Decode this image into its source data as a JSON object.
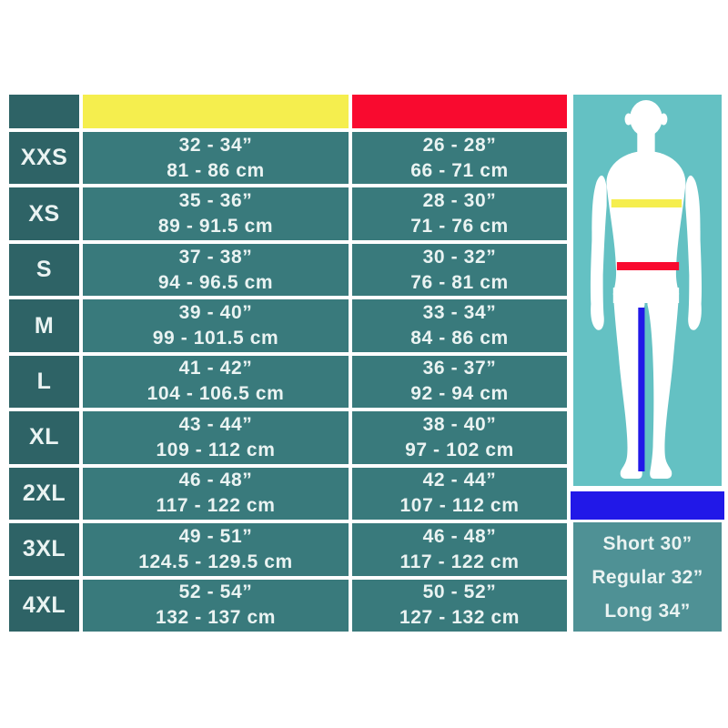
{
  "colors": {
    "page_bg": "#ffffff",
    "table_label_bg": "#2e6366",
    "table_cell_bg": "#397a7c",
    "chest_header": "#f5ee4e",
    "waist_header": "#f90a2f",
    "figure_bg": "#64c1c3",
    "inseam_bar": "#2118e8",
    "leg_panel_bg": "#4f9195",
    "silhouette": "#ffffff",
    "chest_line": "#f5ee4e",
    "waist_line": "#f90a2f",
    "inseam_line": "#2118e8",
    "text": "#eaf3f2"
  },
  "chart_data": {
    "type": "table",
    "columns": [
      {
        "id": "size",
        "header_text": ""
      },
      {
        "id": "chest",
        "header_text": "",
        "header_color": "#f5ee4e"
      },
      {
        "id": "waist",
        "header_text": "",
        "header_color": "#f90a2f"
      }
    ],
    "rows": [
      {
        "size": "XXS",
        "chest_in": "32 - 34”",
        "chest_cm": "81 - 86 cm",
        "waist_in": "26 - 28”",
        "waist_cm": "66 - 71 cm"
      },
      {
        "size": "XS",
        "chest_in": "35 - 36”",
        "chest_cm": "89 - 91.5 cm",
        "waist_in": "28 - 30”",
        "waist_cm": "71 - 76 cm"
      },
      {
        "size": "S",
        "chest_in": "37 - 38”",
        "chest_cm": "94 - 96.5 cm",
        "waist_in": "30 - 32”",
        "waist_cm": "76 - 81 cm"
      },
      {
        "size": "M",
        "chest_in": "39 - 40”",
        "chest_cm": "99 - 101.5 cm",
        "waist_in": "33 - 34”",
        "waist_cm": "84 - 86 cm"
      },
      {
        "size": "L",
        "chest_in": "41 - 42”",
        "chest_cm": "104 - 106.5 cm",
        "waist_in": "36 - 37”",
        "waist_cm": "92 - 94 cm"
      },
      {
        "size": "XL",
        "chest_in": "43 - 44”",
        "chest_cm": "109 - 112 cm",
        "waist_in": "38 - 40”",
        "waist_cm": "97 - 102 cm"
      },
      {
        "size": "2XL",
        "chest_in": "46 - 48”",
        "chest_cm": "117 - 122 cm",
        "waist_in": "42 - 44”",
        "waist_cm": "107 - 112 cm"
      },
      {
        "size": "3XL",
        "chest_in": "49 - 51”",
        "chest_cm": "124.5 - 129.5 cm",
        "waist_in": "46 - 48”",
        "waist_cm": "117 - 122 cm"
      },
      {
        "size": "4XL",
        "chest_in": "52 - 54”",
        "chest_cm": "132 - 137 cm",
        "waist_in": "50 - 52”",
        "waist_cm": "127 - 132 cm"
      }
    ],
    "leg_length_labels": [
      "Short 30”",
      "Regular 32”",
      "Long 34”"
    ],
    "figure_legend": {
      "chest_line_color": "#f5ee4e",
      "waist_line_color": "#f90a2f",
      "inseam_line_color": "#2118e8"
    }
  }
}
